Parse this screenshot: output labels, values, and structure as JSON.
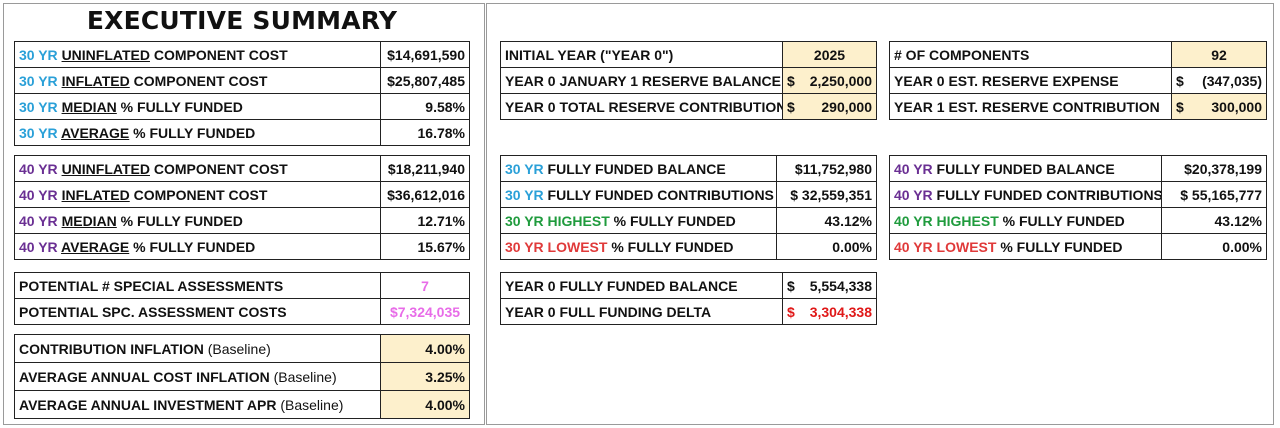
{
  "title": "EXECUTIVE SUMMARY",
  "left30": [
    {
      "yr": "30 YR",
      "key": "UNINFLATED",
      "rest": " COMPONENT COST",
      "value": "$14,691,590"
    },
    {
      "yr": "30 YR",
      "key": "INFLATED",
      "rest": " COMPONENT COST",
      "value": "$25,807,485"
    },
    {
      "yr": "30 YR",
      "key": "MEDIAN",
      "rest": " % FULLY FUNDED",
      "value": "9.58%"
    },
    {
      "yr": "30 YR",
      "key": "AVERAGE",
      "rest": " % FULLY FUNDED",
      "value": "16.78%"
    }
  ],
  "left40": [
    {
      "yr": "40 YR",
      "key": "UNINFLATED",
      "rest": " COMPONENT COST",
      "value": "$18,211,940"
    },
    {
      "yr": "40 YR",
      "key": "INFLATED",
      "rest": " COMPONENT COST",
      "value": "$36,612,016"
    },
    {
      "yr": "40 YR",
      "key": "MEDIAN",
      "rest": " % FULLY FUNDED",
      "value": "12.71%"
    },
    {
      "yr": "40 YR",
      "key": "AVERAGE",
      "rest": " % FULLY FUNDED",
      "value": "15.67%"
    }
  ],
  "special": [
    {
      "label": "POTENTIAL # SPECIAL ASSESSMENTS",
      "value": "7"
    },
    {
      "label": "POTENTIAL SPC. ASSESSMENT COSTS",
      "value": "$7,324,035"
    }
  ],
  "inflation": [
    {
      "label": "CONTRIBUTION INFLATION",
      "note": "(Baseline)",
      "value": "4.00%"
    },
    {
      "label": "AVERAGE ANNUAL COST INFLATION",
      "note": "(Baseline)",
      "value": "3.25%"
    },
    {
      "label": "AVERAGE ANNUAL INVESTMENT APR",
      "note": "(Baseline)",
      "value": "4.00%"
    }
  ],
  "midTop": [
    {
      "label": "INITIAL YEAR (\"YEAR 0\")",
      "value": "2025"
    },
    {
      "label": "YEAR 0 JANUARY 1 RESERVE BALANCE",
      "cur": "$",
      "value": "2,250,000"
    },
    {
      "label": "YEAR 0 TOTAL RESERVE CONTRIBUTION",
      "cur": "$",
      "value": "290,000"
    }
  ],
  "rightTop": [
    {
      "label": "# OF COMPONENTS",
      "value": "92"
    },
    {
      "label": "YEAR 0 EST. RESERVE EXPENSE",
      "cur": "$",
      "value": "(347,035)"
    },
    {
      "label": "YEAR 1 EST. RESERVE CONTRIBUTION",
      "cur": "$",
      "value": "300,000"
    }
  ],
  "mid30": [
    {
      "yr": "30 YR",
      "yrcolor": "c30",
      "rest": " FULLY FUNDED BALANCE",
      "value": "$11,752,980"
    },
    {
      "yr": "30 YR",
      "yrcolor": "c30",
      "rest": " FULLY FUNDED CONTRIBUTIONS",
      "value": "$ 32,559,351"
    },
    {
      "yr": "30 YR HIGHEST",
      "yrcolor": "cg",
      "rest": " % FULLY FUNDED",
      "value": "43.12%"
    },
    {
      "yr": "30 YR LOWEST",
      "yrcolor": "cr",
      "rest": " % FULLY FUNDED",
      "value": "0.00%"
    }
  ],
  "right40": [
    {
      "yr": "40 YR",
      "yrcolor": "c40",
      "rest": " FULLY FUNDED BALANCE",
      "value": "$20,378,199"
    },
    {
      "yr": "40 YR",
      "yrcolor": "c40",
      "rest": " FULLY FUNDED CONTRIBUTIONS",
      "value": "$ 55,165,777"
    },
    {
      "yr": "40 YR HIGHEST",
      "yrcolor": "cg",
      "rest": " % FULLY FUNDED",
      "value": "43.12%"
    },
    {
      "yr": "40 YR LOWEST",
      "yrcolor": "cr",
      "rest": " % FULLY FUNDED",
      "value": "0.00%"
    }
  ],
  "midBottom": [
    {
      "label": "YEAR 0 FULLY FUNDED BALANCE",
      "cur": "$",
      "value": "5,554,338"
    },
    {
      "label": "YEAR 0 FULL FUNDING DELTA",
      "cur": "$",
      "value": "3,304,338"
    }
  ],
  "colors": {
    "yr30": "#2aa0d8",
    "yr40": "#6a2f93",
    "highest": "#1f9b3d",
    "lowest": "#e03a3a",
    "highlight": "#fdf0cc"
  }
}
